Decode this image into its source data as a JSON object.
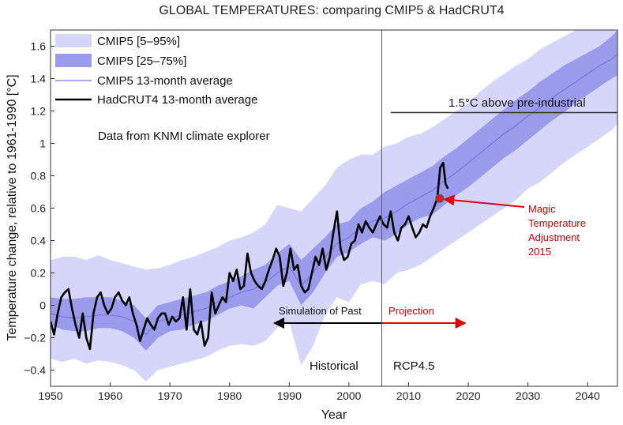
{
  "chart_data": {
    "type": "line",
    "title": "GLOBAL TEMPERATURES: comparing CMIP5 & HadCRUT4",
    "xlabel": "Year",
    "ylabel": "Temperature change, relative to 1961-1990 [°C]",
    "xlim": [
      1950,
      2045
    ],
    "ylim": [
      -0.5,
      1.7
    ],
    "x_ticks": [
      1950,
      1960,
      1970,
      1980,
      1990,
      2000,
      2010,
      2020,
      2030,
      2040
    ],
    "y_ticks": [
      -0.4,
      -0.2,
      0,
      0.2,
      0.4,
      0.6,
      0.8,
      1,
      1.2,
      1.4,
      1.6
    ],
    "x_tick_labels": [
      "1950",
      "1960",
      "1970",
      "1980",
      "1990",
      "2000",
      "2010",
      "2020",
      "2030",
      "2040"
    ],
    "y_tick_labels": [
      "−0.4",
      "−0.2",
      "0",
      "0.2",
      "0.4",
      "0.6",
      "0.8",
      "1",
      "1.2",
      "1.4",
      "1.6"
    ],
    "grid": false,
    "legend_position": "top-left",
    "legend": [
      {
        "label": "CMIP5 [5–95%]",
        "color": "#d6d6fa",
        "kind": "band"
      },
      {
        "label": "CMIP5 [25–75%]",
        "color": "#9b9bee",
        "kind": "band"
      },
      {
        "label": "CMIP5 13-month average",
        "color": "#7777dd",
        "kind": "line"
      },
      {
        "label": "HadCRUT4 13-month average",
        "color": "#000000",
        "kind": "line"
      }
    ],
    "years": [
      1950,
      1952,
      1954,
      1956,
      1958,
      1960,
      1962,
      1964,
      1966,
      1968,
      1970,
      1972,
      1974,
      1976,
      1978,
      1980,
      1982,
      1984,
      1986,
      1988,
      1990,
      1992,
      1994,
      1996,
      1998,
      2000,
      2002,
      2004,
      2006,
      2008,
      2010,
      2012,
      2014,
      2016,
      2018,
      2020,
      2022,
      2024,
      2026,
      2028,
      2030,
      2032,
      2034,
      2036,
      2038,
      2040,
      2042,
      2044,
      2045
    ],
    "series": [
      {
        "name": "CMIP5 [5–95%]",
        "kind": "band",
        "lower": [
          -0.33,
          -0.35,
          -0.33,
          -0.36,
          -0.34,
          -0.35,
          -0.37,
          -0.4,
          -0.47,
          -0.4,
          -0.38,
          -0.36,
          -0.34,
          -0.32,
          -0.28,
          -0.25,
          -0.24,
          -0.25,
          -0.22,
          -0.14,
          -0.1,
          -0.37,
          -0.25,
          -0.06,
          0.05,
          0.02,
          0.13,
          0.15,
          0.13,
          0.2,
          0.22,
          0.25,
          0.3,
          0.35,
          0.4,
          0.45,
          0.5,
          0.55,
          0.6,
          0.65,
          0.72,
          0.76,
          0.82,
          0.88,
          0.93,
          0.98,
          1.03,
          1.08,
          1.12
        ],
        "upper": [
          0.28,
          0.3,
          0.3,
          0.28,
          0.31,
          0.28,
          0.26,
          0.24,
          0.22,
          0.23,
          0.25,
          0.28,
          0.3,
          0.33,
          0.36,
          0.4,
          0.42,
          0.45,
          0.5,
          0.62,
          0.6,
          0.58,
          0.66,
          0.74,
          0.85,
          0.9,
          0.93,
          0.93,
          0.98,
          1.0,
          1.04,
          1.06,
          1.1,
          1.15,
          1.2,
          1.25,
          1.32,
          1.38,
          1.43,
          1.48,
          1.52,
          1.58,
          1.62,
          1.66,
          1.7,
          1.72,
          1.75,
          1.78,
          1.8
        ]
      },
      {
        "name": "CMIP5 [25–75%]",
        "kind": "band",
        "lower": [
          -0.12,
          -0.15,
          -0.16,
          -0.16,
          -0.14,
          -0.14,
          -0.16,
          -0.2,
          -0.28,
          -0.2,
          -0.16,
          -0.15,
          -0.12,
          -0.1,
          -0.06,
          -0.02,
          0.0,
          -0.02,
          0.05,
          0.12,
          0.15,
          0.0,
          0.08,
          0.2,
          0.3,
          0.33,
          0.38,
          0.42,
          0.4,
          0.44,
          0.5,
          0.54,
          0.56,
          0.62,
          0.68,
          0.73,
          0.79,
          0.85,
          0.91,
          0.96,
          1.02,
          1.08,
          1.14,
          1.19,
          1.25,
          1.3,
          1.35,
          1.4,
          1.42
        ],
        "upper": [
          0.05,
          0.04,
          0.04,
          0.05,
          0.05,
          0.05,
          0.03,
          0.0,
          -0.08,
          0.0,
          0.02,
          0.04,
          0.06,
          0.08,
          0.12,
          0.15,
          0.18,
          0.22,
          0.25,
          0.32,
          0.38,
          0.28,
          0.35,
          0.42,
          0.5,
          0.52,
          0.6,
          0.64,
          0.7,
          0.74,
          0.78,
          0.82,
          0.86,
          0.92,
          0.97,
          1.03,
          1.09,
          1.15,
          1.21,
          1.27,
          1.32,
          1.38,
          1.43,
          1.48,
          1.52,
          1.56,
          1.6,
          1.66,
          1.7
        ]
      },
      {
        "name": "CMIP5 13-month average",
        "kind": "line",
        "values": [
          -0.05,
          -0.07,
          -0.08,
          -0.07,
          -0.06,
          -0.06,
          -0.07,
          -0.1,
          -0.18,
          -0.1,
          -0.08,
          -0.06,
          -0.04,
          -0.02,
          0.02,
          0.05,
          0.08,
          0.1,
          0.14,
          0.2,
          0.24,
          0.12,
          0.2,
          0.3,
          0.38,
          0.42,
          0.48,
          0.52,
          0.54,
          0.58,
          0.63,
          0.67,
          0.71,
          0.77,
          0.82,
          0.88,
          0.94,
          1.0,
          1.06,
          1.11,
          1.17,
          1.22,
          1.28,
          1.33,
          1.38,
          1.43,
          1.48,
          1.52,
          1.55
        ]
      }
    ],
    "observed": {
      "name": "HadCRUT4 13-month average",
      "x": [
        1950,
        1950.6,
        1951.2,
        1951.8,
        1952.4,
        1953,
        1953.6,
        1954.2,
        1954.8,
        1955.4,
        1956,
        1956.6,
        1957.2,
        1957.8,
        1958.4,
        1959,
        1959.6,
        1960.2,
        1960.8,
        1961.4,
        1962,
        1962.6,
        1963.2,
        1963.8,
        1964.4,
        1965,
        1965.6,
        1966.2,
        1966.8,
        1967.4,
        1968,
        1968.6,
        1969.2,
        1969.8,
        1970.4,
        1971,
        1971.6,
        1972.2,
        1972.8,
        1973.4,
        1974,
        1974.6,
        1975.2,
        1975.8,
        1976.4,
        1977,
        1977.6,
        1978.2,
        1978.8,
        1979.4,
        1980,
        1980.6,
        1981.2,
        1981.8,
        1982.4,
        1983,
        1983.6,
        1984.2,
        1984.8,
        1985.4,
        1986,
        1986.6,
        1987.2,
        1987.8,
        1988.4,
        1989,
        1989.6,
        1990.2,
        1990.8,
        1991.4,
        1992,
        1992.6,
        1993.2,
        1993.8,
        1994.4,
        1995,
        1995.6,
        1996.2,
        1996.8,
        1997.4,
        1998,
        1998.6,
        1999.2,
        1999.8,
        2000.4,
        2001,
        2001.6,
        2002.2,
        2002.8,
        2003.4,
        2004,
        2004.6,
        2005.2,
        2005.8,
        2006.4,
        2007,
        2007.6,
        2008.2,
        2008.8,
        2009.4,
        2010,
        2010.6,
        2011.2,
        2011.8,
        2012.4,
        2013,
        2013.6,
        2014.2,
        2014.8,
        2015.3,
        2015.8,
        2016.2,
        2016.6
      ],
      "values": [
        -0.1,
        -0.18,
        -0.05,
        0.05,
        0.08,
        0.1,
        -0.02,
        -0.12,
        -0.2,
        -0.05,
        -0.2,
        -0.27,
        -0.05,
        0.05,
        0.08,
        0.0,
        -0.05,
        -0.02,
        0.05,
        0.08,
        0.03,
        0.0,
        0.05,
        -0.05,
        -0.12,
        -0.22,
        -0.15,
        -0.08,
        -0.12,
        -0.15,
        -0.08,
        -0.05,
        -0.05,
        -0.12,
        -0.07,
        -0.1,
        -0.08,
        0.05,
        -0.15,
        0.1,
        -0.15,
        -0.18,
        -0.1,
        -0.25,
        -0.2,
        0.08,
        -0.05,
        0.0,
        0.05,
        0.02,
        0.2,
        0.15,
        0.22,
        0.1,
        0.12,
        0.32,
        0.2,
        0.15,
        0.12,
        0.1,
        0.15,
        0.22,
        0.28,
        0.35,
        0.3,
        0.12,
        0.2,
        0.35,
        0.22,
        0.25,
        0.12,
        0.08,
        0.1,
        0.2,
        0.3,
        0.25,
        0.35,
        0.22,
        0.3,
        0.45,
        0.58,
        0.35,
        0.28,
        0.3,
        0.38,
        0.4,
        0.5,
        0.45,
        0.52,
        0.48,
        0.45,
        0.5,
        0.55,
        0.5,
        0.48,
        0.58,
        0.45,
        0.4,
        0.48,
        0.5,
        0.55,
        0.48,
        0.42,
        0.45,
        0.5,
        0.48,
        0.55,
        0.6,
        0.66,
        0.85,
        0.88,
        0.75,
        0.72
      ]
    },
    "vertical_line_x": 2005.5,
    "annotations": {
      "source_note": "Data from KNMI climate explorer",
      "threshold_label": "1.5°C above pre-industrial",
      "threshold_y": 1.19,
      "threshold_x_start": 2007,
      "historical_label": "Historical",
      "rcp_label": "RCP4.5",
      "past_label": "Simulation of Past",
      "projection_label": "Projection",
      "magic_lines": [
        "Magic",
        "Temperature",
        "Adjustment",
        "2015"
      ],
      "magic_point": {
        "x": 2015.2,
        "y": 0.66
      },
      "past_arrow_x": [
        1987.5,
        2005.5
      ],
      "projection_arrow_x": [
        2005.5,
        2019.5
      ],
      "arrow_y": -0.11
    },
    "colors": {
      "band_outer": "#d6d6fa",
      "band_inner": "#9b9bee",
      "cmip_line": "#7777dd",
      "obs_line": "#000000",
      "accent_red": "#e00000",
      "magic_point": "#cc2222"
    }
  }
}
